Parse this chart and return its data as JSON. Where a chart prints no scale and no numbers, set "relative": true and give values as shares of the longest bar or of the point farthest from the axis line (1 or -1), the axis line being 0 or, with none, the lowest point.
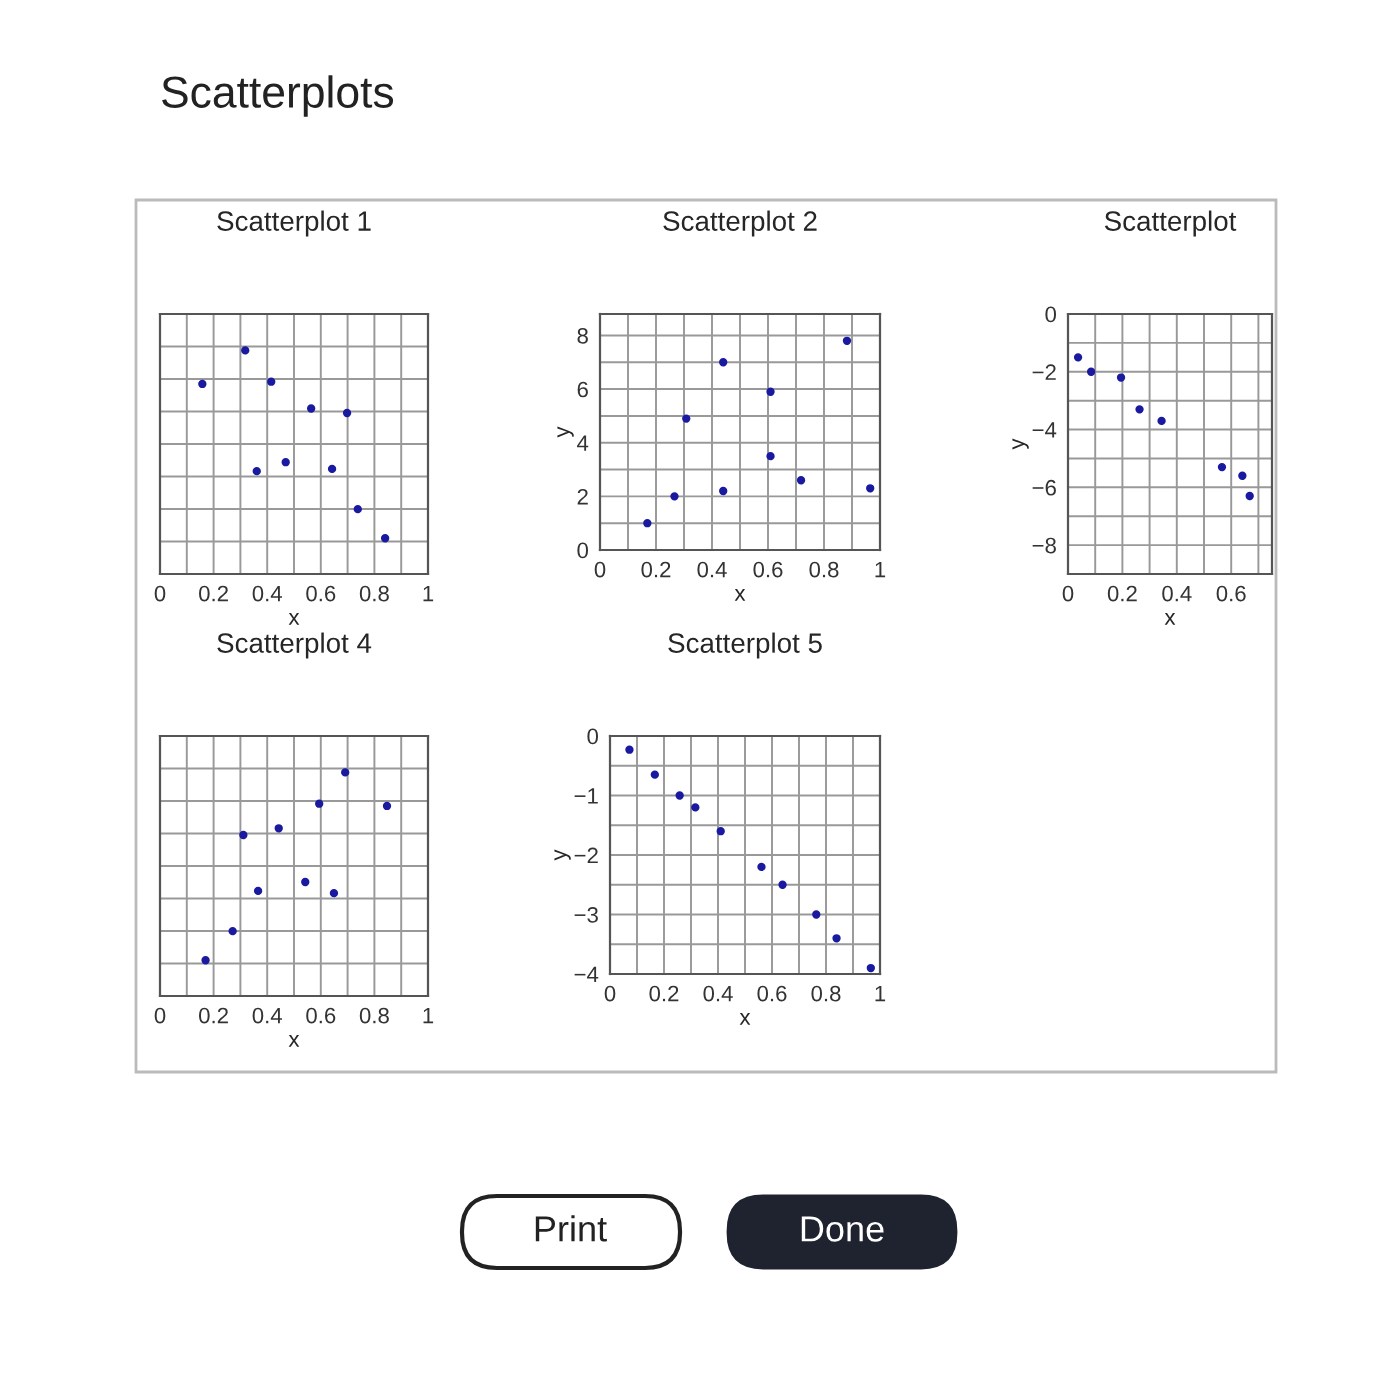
{
  "chart_data": [
    {
      "type": "scatter",
      "title": "Scatterplot 1",
      "xlabel": "x",
      "relative": true,
      "tick_labels": "x",
      "grid": true,
      "marker": "circle",
      "xlim": [
        0,
        1
      ],
      "xticks": [
        0,
        0.2,
        0.4,
        0.6,
        0.8,
        1
      ],
      "annotations": [
        "Scatterplots",
        "Print",
        "Done"
      ],
      "series": [
        {
          "color": "#1a1aa0",
          "x": [
            0.158,
            0.318,
            0.415,
            0.564,
            0.698,
            0.361,
            0.469,
            0.642,
            0.738,
            0.84
          ],
          "values": [
            0.85,
            1,
            0.86,
            0.74,
            0.72,
            0.46,
            0.5,
            0.47,
            0.29,
            0.16
          ]
        }
      ]
    },
    {
      "type": "scatter",
      "title": "Scatterplot 2",
      "xlabel": "x",
      "ylabel": "y",
      "grid": true,
      "marker": "circle",
      "xlim": [
        0,
        1
      ],
      "xticks": [
        0,
        0.2,
        0.4,
        0.6,
        0.8,
        1
      ],
      "ylim": [
        0,
        8.8
      ],
      "yticks": [
        0,
        2,
        4,
        6,
        8
      ],
      "series": [
        {
          "color": "#1a1aa0",
          "x": [
            0.169,
            0.266,
            0.308,
            0.44,
            0.44,
            0.609,
            0.609,
            0.718,
            0.882,
            0.965
          ],
          "values": [
            1.0,
            2.0,
            4.9,
            7.0,
            2.2,
            5.9,
            3.5,
            2.6,
            7.8,
            2.3
          ]
        }
      ]
    },
    {
      "type": "scatter",
      "title": "Scatterplot",
      "xlabel": "x",
      "ylabel": "y",
      "grid": true,
      "marker": "circle",
      "xlim": [
        0,
        0.75
      ],
      "xticks": [
        0,
        0.2,
        0.4,
        0.6
      ],
      "ylim": [
        -9,
        0
      ],
      "yticks": [
        0,
        -2,
        -4,
        -6,
        -8
      ],
      "series": [
        {
          "color": "#1a1aa0",
          "x": [
            0.037,
            0.085,
            0.195,
            0.263,
            0.344,
            0.566,
            0.641,
            0.668
          ],
          "values": [
            -1.5,
            -2.0,
            -2.2,
            -3.3,
            -3.7,
            -5.3,
            -5.6,
            -6.3
          ]
        }
      ]
    },
    {
      "type": "scatter",
      "title": "Scatterplot 4",
      "xlabel": "x",
      "relative": true,
      "tick_labels": "x",
      "grid": true,
      "marker": "circle",
      "xlim": [
        0,
        1
      ],
      "xticks": [
        0,
        0.2,
        0.4,
        0.6,
        0.8,
        1
      ],
      "series": [
        {
          "color": "#1a1aa0",
          "x": [
            0.17,
            0.271,
            0.366,
            0.311,
            0.443,
            0.542,
            0.594,
            0.649,
            0.691,
            0.847
          ],
          "values": [
            0.16,
            0.29,
            0.47,
            0.72,
            0.75,
            0.51,
            0.86,
            0.46,
            1,
            0.85
          ]
        }
      ]
    },
    {
      "type": "scatter",
      "title": "Scatterplot 5",
      "xlabel": "x",
      "ylabel": "y",
      "grid": true,
      "marker": "circle",
      "xlim": [
        0,
        1
      ],
      "xticks": [
        0,
        0.2,
        0.4,
        0.6,
        0.8,
        1
      ],
      "ylim": [
        -4,
        0
      ],
      "yticks": [
        0,
        -1,
        -2,
        -3,
        -4
      ],
      "series": [
        {
          "color": "#1a1aa0",
          "x": [
            0.072,
            0.166,
            0.258,
            0.316,
            0.41,
            0.561,
            0.639,
            0.764,
            0.839,
            0.966
          ],
          "values": [
            -0.23,
            -0.65,
            -1.0,
            -1.2,
            -1.6,
            -2.2,
            -2.5,
            -3.0,
            -3.4,
            -3.9
          ]
        }
      ]
    }
  ]
}
